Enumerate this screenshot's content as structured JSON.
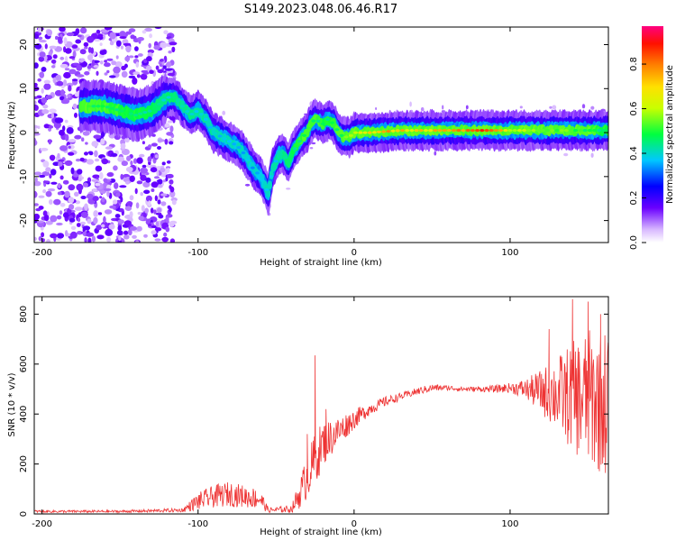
{
  "figure": {
    "title": "S149.2023.048.06.46.R17"
  },
  "chart_data": [
    {
      "type": "heatmap",
      "xlabel": "Height of straight line (km)",
      "ylabel": "Frequency (Hz)",
      "xlim": [
        -205,
        163
      ],
      "ylim": [
        -25,
        24
      ],
      "xticks": [
        -200,
        -100,
        0,
        100
      ],
      "yticks": [
        -20,
        -10,
        0,
        10,
        20
      ],
      "colorbar": {
        "label": "Normalized spectral amplitude",
        "range": [
          0,
          0.97
        ],
        "ticks": [
          "0.0",
          "0.2",
          "0.4",
          "0.6",
          "0.8"
        ]
      },
      "ridge_points": [
        [
          -170,
          6
        ],
        [
          -160,
          6
        ],
        [
          -150,
          5
        ],
        [
          -140,
          4
        ],
        [
          -130,
          5
        ],
        [
          -120,
          8
        ],
        [
          -115,
          8
        ],
        [
          -110,
          6
        ],
        [
          -105,
          4
        ],
        [
          -100,
          5
        ],
        [
          -95,
          3
        ],
        [
          -90,
          0
        ],
        [
          -85,
          -1
        ],
        [
          -80,
          -2
        ],
        [
          -75,
          -3
        ],
        [
          -70,
          -5
        ],
        [
          -65,
          -8
        ],
        [
          -60,
          -10
        ],
        [
          -57,
          -12
        ],
        [
          -55,
          -14
        ],
        [
          -52,
          -8
        ],
        [
          -48,
          -5
        ],
        [
          -45,
          -5
        ],
        [
          -42,
          -7
        ],
        [
          -40,
          -5
        ],
        [
          -37,
          -3
        ],
        [
          -33,
          -1
        ],
        [
          -30,
          0
        ],
        [
          -28,
          2
        ],
        [
          -25,
          3
        ],
        [
          -20,
          2
        ],
        [
          -17,
          3
        ],
        [
          -13,
          2
        ],
        [
          -10,
          0
        ],
        [
          -7,
          -1
        ],
        [
          -3,
          -1
        ],
        [
          0,
          0
        ],
        [
          10,
          0
        ],
        [
          30,
          0.5
        ],
        [
          50,
          0.5
        ],
        [
          70,
          0.5
        ],
        [
          90,
          0.5
        ],
        [
          110,
          0.5
        ],
        [
          130,
          0.5
        ],
        [
          150,
          0.5
        ],
        [
          163,
          0.5
        ]
      ],
      "ridge_peak_amplitude": [
        [
          -170,
          0.55
        ],
        [
          -110,
          0.45
        ],
        [
          -60,
          0.4
        ],
        [
          -45,
          0.45
        ],
        [
          -30,
          0.55
        ],
        [
          -15,
          0.5
        ],
        [
          0,
          0.65
        ],
        [
          20,
          0.85
        ],
        [
          40,
          0.75
        ],
        [
          60,
          0.85
        ],
        [
          80,
          0.95
        ],
        [
          100,
          0.7
        ],
        [
          130,
          0.6
        ],
        [
          150,
          0.55
        ],
        [
          163,
          0.5
        ]
      ]
    },
    {
      "type": "line",
      "xlabel": "Height of straight line (km)",
      "ylabel": "SNR (10 * v/v)",
      "xlim": [
        -205,
        163
      ],
      "ylim": [
        0,
        870
      ],
      "xticks": [
        -200,
        -100,
        0,
        100
      ],
      "yticks": [
        0,
        200,
        400,
        600,
        800
      ],
      "series": [
        {
          "color": "#ee3333",
          "envelope_x": [
            -205,
            -150,
            -110,
            -100,
            -90,
            -80,
            -70,
            -60,
            -55,
            -40,
            -35,
            -30,
            -25,
            -20,
            -10,
            0,
            10,
            20,
            30,
            40,
            50,
            60,
            70,
            80,
            90,
            100,
            110,
            120,
            130,
            140,
            150,
            163
          ],
          "envelope_y": [
            10,
            10,
            15,
            50,
            70,
            80,
            70,
            60,
            15,
            20,
            80,
            150,
            220,
            280,
            330,
            380,
            420,
            450,
            470,
            490,
            505,
            505,
            500,
            500,
            500,
            505,
            500,
            490,
            480,
            470,
            460,
            450
          ],
          "noise_amplitude": [
            5,
            5,
            8,
            35,
            45,
            50,
            45,
            40,
            10,
            15,
            60,
            90,
            110,
            90,
            60,
            40,
            25,
            20,
            15,
            15,
            15,
            10,
            10,
            10,
            15,
            20,
            40,
            90,
            150,
            220,
            280,
            300
          ],
          "spikes": [
            [
              -25,
              635
            ],
            [
              -18,
              420
            ],
            [
              -30,
              320
            ],
            [
              140,
              860
            ],
            [
              150,
              850
            ],
            [
              158,
              800
            ],
            [
              125,
              740
            ]
          ]
        }
      ]
    }
  ]
}
